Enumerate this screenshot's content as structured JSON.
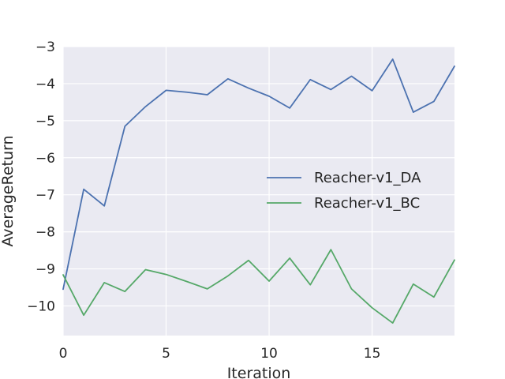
{
  "chart_data": {
    "type": "line",
    "xlabel": "Iteration",
    "ylabel": "AverageReturn",
    "xlim": [
      0,
      19
    ],
    "ylim": [
      -10.8,
      -3.0
    ],
    "xticks": [
      0,
      5,
      10,
      15
    ],
    "yticks": [
      -10,
      -9,
      -8,
      -7,
      -6,
      -5,
      -4,
      -3
    ],
    "grid": true,
    "legend_position": "center-right",
    "x": [
      0,
      1,
      2,
      3,
      4,
      5,
      6,
      7,
      8,
      9,
      10,
      11,
      12,
      13,
      14,
      15,
      16,
      17,
      18,
      19
    ],
    "series": [
      {
        "name": "Reacher-v1_DA",
        "color": "#4c72b0",
        "values": [
          -9.55,
          -6.85,
          -7.3,
          -5.15,
          -4.62,
          -4.18,
          -4.23,
          -4.3,
          -3.87,
          -4.12,
          -4.34,
          -4.66,
          -3.89,
          -4.16,
          -3.8,
          -4.19,
          -3.34,
          -4.77,
          -4.48,
          -3.53
        ]
      },
      {
        "name": "Reacher-v1_BC",
        "color": "#55a868",
        "values": [
          -9.16,
          -10.25,
          -9.37,
          -9.61,
          -9.02,
          -9.15,
          -9.34,
          -9.54,
          -9.19,
          -8.77,
          -9.33,
          -8.71,
          -9.43,
          -8.48,
          -9.54,
          -10.05,
          -10.46,
          -9.41,
          -9.76,
          -8.76
        ]
      }
    ]
  }
}
